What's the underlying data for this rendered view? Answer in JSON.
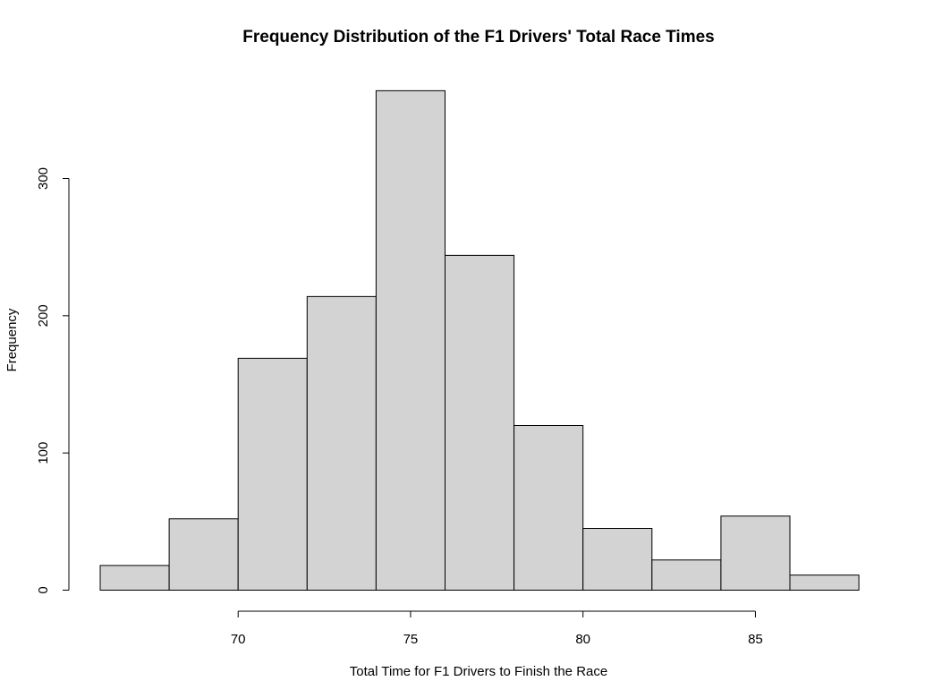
{
  "chart_data": {
    "type": "bar",
    "title": "Frequency Distribution of the F1 Drivers' Total Race Times",
    "xlabel": "Total Time for F1 Drivers to Finish the Race",
    "ylabel": "Frequency",
    "bins": [
      {
        "start": 66,
        "end": 68,
        "count": 18
      },
      {
        "start": 68,
        "end": 70,
        "count": 52
      },
      {
        "start": 70,
        "end": 72,
        "count": 169
      },
      {
        "start": 72,
        "end": 74,
        "count": 214
      },
      {
        "start": 74,
        "end": 76,
        "count": 364
      },
      {
        "start": 76,
        "end": 78,
        "count": 244
      },
      {
        "start": 78,
        "end": 80,
        "count": 120
      },
      {
        "start": 80,
        "end": 82,
        "count": 45
      },
      {
        "start": 82,
        "end": 84,
        "count": 22
      },
      {
        "start": 84,
        "end": 86,
        "count": 54
      },
      {
        "start": 86,
        "end": 88,
        "count": 11
      }
    ],
    "x_ticks": [
      "70",
      "75",
      "80",
      "85"
    ],
    "y_ticks": [
      "0",
      "100",
      "200",
      "300"
    ],
    "xlim": [
      66,
      88
    ],
    "ylim": [
      0,
      364
    ],
    "bar_color": "#d3d3d3",
    "grid": false
  }
}
